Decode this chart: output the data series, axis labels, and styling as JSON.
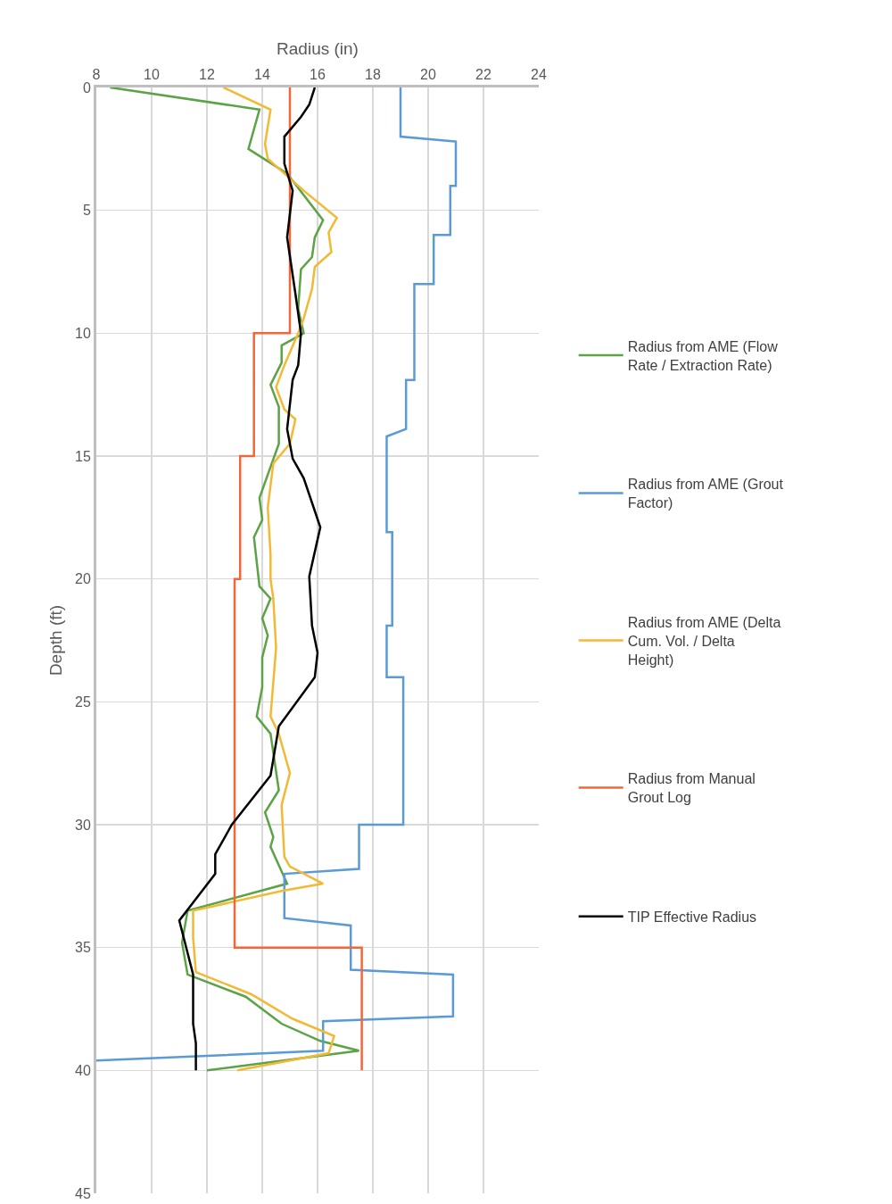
{
  "chart_data": {
    "type": "line",
    "xlabel": "Radius (in)",
    "ylabel": "Depth (ft)",
    "xlim": [
      8,
      24
    ],
    "xticks": [
      8,
      10,
      12,
      14,
      16,
      18,
      20,
      22,
      24
    ],
    "ylim": [
      45,
      0
    ],
    "yticks": [
      0,
      5,
      10,
      15,
      20,
      25,
      30,
      35,
      40,
      45
    ],
    "grid": true,
    "legend": "right",
    "marker": "none",
    "line_style": "solid",
    "series": [
      {
        "name": "Radius from AME (Flow Rate / Extraction Rate)",
        "color": "#5ba345",
        "x": [
          8.5,
          13.9,
          13.5,
          14.9,
          16.2,
          15.9,
          15.8,
          15.4,
          15.3,
          15.5,
          14.7,
          14.7,
          14.3,
          14.6,
          14.6,
          13.9,
          14.0,
          13.7,
          13.9,
          14.3,
          14.0,
          14.2,
          14.0,
          14.0,
          13.8,
          14.3,
          14.6,
          14.1,
          14.4,
          14.3,
          14.9,
          11.3,
          11.1,
          11.3,
          13.4,
          14.7,
          16.1,
          17.5,
          12.0
        ],
        "values": [
          0,
          0.9,
          2.5,
          3.5,
          5.4,
          6.1,
          6.9,
          7.4,
          9.0,
          10.0,
          10.5,
          11.2,
          12.1,
          13.0,
          14.5,
          16.7,
          17.6,
          18.3,
          20.3,
          20.8,
          21.6,
          22.3,
          23.2,
          24.4,
          25.6,
          26.3,
          28.6,
          29.5,
          30.5,
          30.9,
          32.4,
          33.5,
          34.8,
          36.1,
          37.0,
          38.1,
          38.8,
          39.2,
          40.0
        ]
      },
      {
        "name": "Radius from AME (Grout Factor)",
        "color": "#5b9bd5",
        "x": [
          19.0,
          19.0,
          21.0,
          21.0,
          20.8,
          20.8,
          20.2,
          20.2,
          19.5,
          19.5,
          19.2,
          19.2,
          18.5,
          18.5,
          18.7,
          18.7,
          18.5,
          18.5,
          19.1,
          19.1,
          17.5,
          17.5,
          14.8,
          14.8,
          17.2,
          17.2,
          20.9,
          20.9,
          16.2,
          16.2,
          8.0
        ],
        "values": [
          0,
          2.0,
          2.2,
          4.0,
          4.0,
          6.0,
          6.0,
          8.0,
          8.0,
          11.9,
          11.9,
          13.9,
          14.2,
          18.1,
          18.1,
          21.9,
          21.9,
          24.0,
          24.0,
          30.0,
          30.0,
          31.8,
          32.0,
          33.8,
          34.1,
          35.9,
          36.1,
          37.8,
          38.0,
          39.2,
          39.6
        ]
      },
      {
        "name": "Radius from AME (Delta Cum. Vol. / Delta Height)",
        "color": "#f2b935",
        "x": [
          12.6,
          14.3,
          14.1,
          14.2,
          15.5,
          16.7,
          16.4,
          16.5,
          15.9,
          15.8,
          15.5,
          15.3,
          14.8,
          14.5,
          14.8,
          15.2,
          15.0,
          14.4,
          14.2,
          14.3,
          14.3,
          14.4,
          14.5,
          14.3,
          14.6,
          15.0,
          14.7,
          14.8,
          15.0,
          16.2,
          14.7,
          11.5,
          11.5,
          11.6,
          13.6,
          15.1,
          16.6,
          16.4,
          13.1
        ],
        "values": [
          0,
          0.9,
          2.3,
          2.9,
          4.2,
          5.3,
          5.9,
          6.7,
          7.3,
          8.2,
          9.4,
          10.0,
          11.3,
          12.2,
          13.1,
          13.5,
          14.5,
          15.3,
          17.1,
          19.0,
          20.0,
          20.8,
          22.8,
          25.6,
          26.3,
          27.9,
          29.2,
          31.3,
          31.7,
          32.4,
          32.7,
          33.5,
          34.6,
          36.0,
          36.9,
          37.9,
          38.6,
          39.3,
          40.0
        ]
      },
      {
        "name": "Radius from Manual Grout Log",
        "color": "#f0673a",
        "x": [
          15.0,
          15.0,
          13.7,
          13.7,
          13.2,
          13.2,
          13.0,
          13.0,
          17.6,
          17.6
        ],
        "values": [
          0,
          10,
          10,
          15,
          15,
          20,
          20,
          35,
          35,
          40
        ]
      },
      {
        "name": "TIP Effective Radius",
        "color": "#000000",
        "x": [
          15.9,
          15.7,
          15.4,
          14.8,
          14.8,
          15.1,
          14.9,
          15.2,
          15.4,
          15.3,
          15.1,
          14.9,
          15.1,
          15.5,
          16.1,
          15.7,
          15.8,
          16.0,
          15.9,
          14.6,
          14.3,
          12.9,
          12.3,
          12.3,
          11.0,
          11.5,
          11.5,
          11.6,
          11.6
        ],
        "values": [
          0,
          0.7,
          1.2,
          2.0,
          3.1,
          4.2,
          6.1,
          8.4,
          10.0,
          11.3,
          11.9,
          13.9,
          15.1,
          15.9,
          17.9,
          19.9,
          21.9,
          23.0,
          24.0,
          26.0,
          28.0,
          30.0,
          31.2,
          32.0,
          33.9,
          36.1,
          38.1,
          38.9,
          40.0
        ]
      }
    ]
  }
}
